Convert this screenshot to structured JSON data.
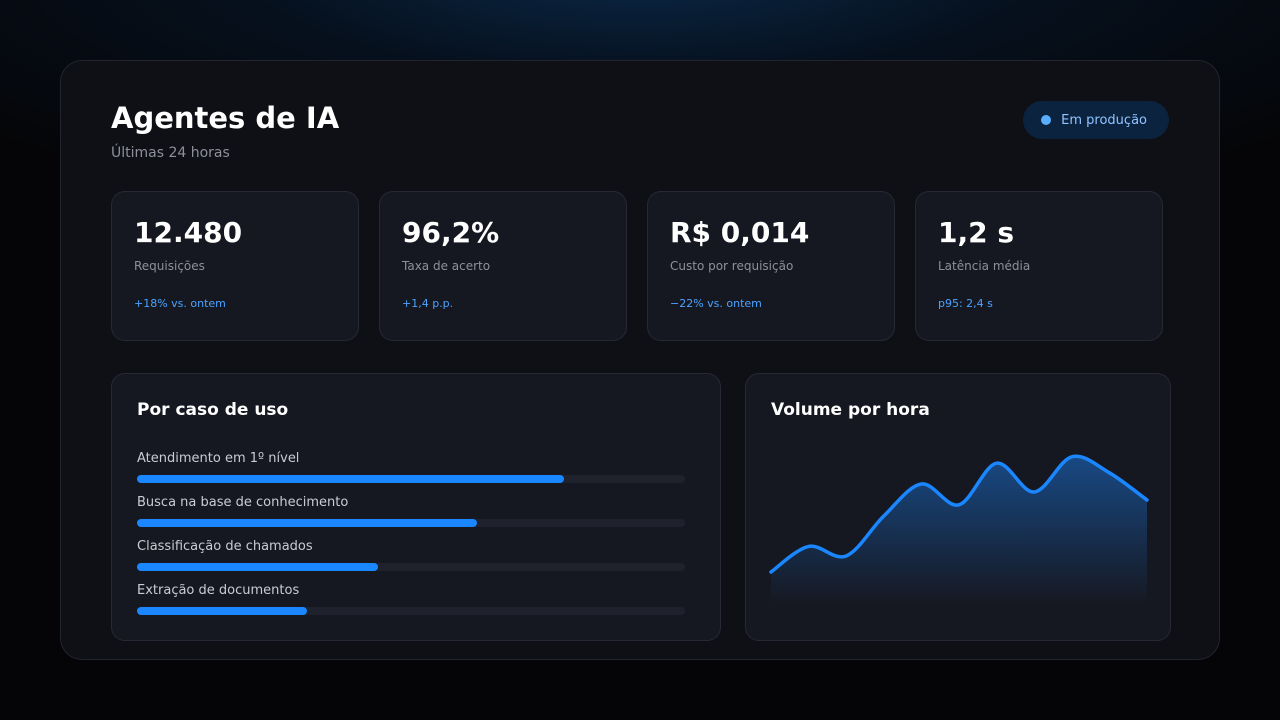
{
  "header": {
    "title": "Agentes de IA",
    "subtitle": "Últimas 24 horas",
    "status_badge": "Em produção"
  },
  "metrics": [
    {
      "value": "12.480",
      "label": "Requisições",
      "delta": "+18% vs. ontem"
    },
    {
      "value": "96,2%",
      "label": "Taxa de acerto",
      "delta": "+1,4 p.p."
    },
    {
      "value": "R$ 0,014",
      "label": "Custo por requisição",
      "delta": "−22% vs. ontem"
    },
    {
      "value": "1,2 s",
      "label": "Latência média",
      "delta": "p95: 2,4 s"
    }
  ],
  "use_cases": {
    "title": "Por caso de uso",
    "items": [
      {
        "label": "Atendimento em 1º nível",
        "share": 0.78
      },
      {
        "label": "Busca na base de conhecimento",
        "share": 0.62
      },
      {
        "label": "Classificação de chamados",
        "share": 0.44
      },
      {
        "label": "Extração de documentos",
        "share": 0.31
      }
    ]
  },
  "chart_data": {
    "type": "area",
    "title": "Volume por hora",
    "xlabel": "",
    "ylabel": "",
    "grid": false,
    "legend": "none",
    "ylim": [
      0,
      100
    ],
    "x": [
      0,
      1,
      2,
      3,
      4,
      5,
      6,
      7,
      8,
      9,
      10
    ],
    "series": [
      {
        "values": [
          20,
          36,
          30,
          55,
          75,
          62,
          88,
          70,
          92,
          82,
          65
        ]
      }
    ]
  },
  "colors": {
    "accent": "#1a86ff",
    "accent_text": "#4aa3ff",
    "panel": "#0f1016",
    "card": "#161821"
  }
}
